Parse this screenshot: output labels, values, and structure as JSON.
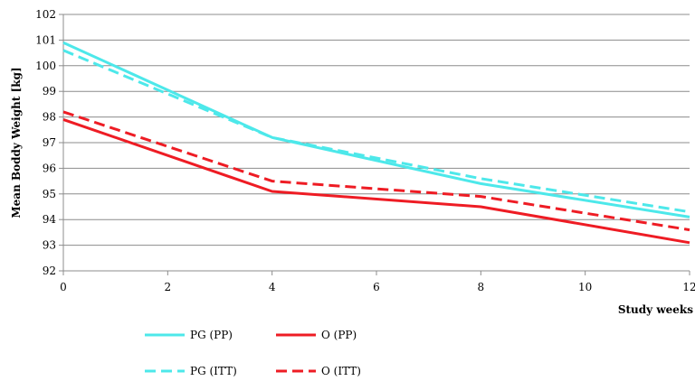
{
  "chart_data": {
    "type": "line",
    "title": "",
    "xlabel": "Study weeks",
    "ylabel": "Mean Boddy Weight [kg]",
    "xlim": [
      0,
      12
    ],
    "ylim": [
      92,
      102
    ],
    "xticks": [
      0,
      2,
      4,
      6,
      8,
      10,
      12
    ],
    "yticks": [
      92,
      93,
      94,
      95,
      96,
      97,
      98,
      99,
      100,
      101,
      102
    ],
    "grid": "horizontal",
    "legend_position": "bottom",
    "series": [
      {
        "name": "PG (PP)",
        "color": "#4DE8EA",
        "dash": "solid",
        "x": [
          0,
          4,
          8,
          12
        ],
        "y": [
          100.9,
          97.2,
          95.4,
          94.1
        ]
      },
      {
        "name": "O (PP)",
        "color": "#EE1C24",
        "dash": "solid",
        "x": [
          0,
          4,
          8,
          12
        ],
        "y": [
          97.9,
          95.1,
          94.5,
          93.1
        ]
      },
      {
        "name": "PG (ITT)",
        "color": "#4DE8EA",
        "dash": "dashed",
        "x": [
          0,
          4,
          8,
          12
        ],
        "y": [
          100.6,
          97.2,
          95.6,
          94.3
        ]
      },
      {
        "name": "O (ITT)",
        "color": "#EE1C24",
        "dash": "dashed",
        "x": [
          0,
          4,
          8,
          12
        ],
        "y": [
          98.2,
          95.5,
          94.9,
          93.6
        ]
      }
    ]
  }
}
